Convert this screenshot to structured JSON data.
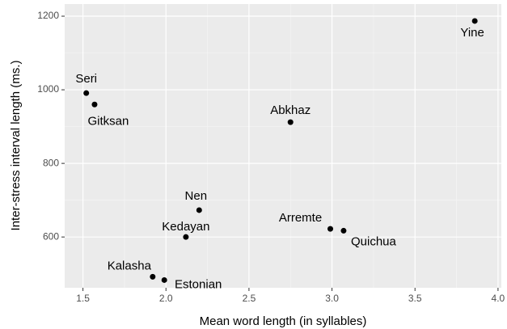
{
  "chart_data": {
    "type": "scatter",
    "x_label": "Mean word length (in syllables)",
    "y_label": "Inter-stress interval length (ms.)",
    "labels": [
      "Seri",
      "Gitksan",
      "Abkhaz",
      "Yine",
      "Nen",
      "Kedayan",
      "Arremte",
      "Quichua",
      "Kalasha",
      "Estonian"
    ],
    "x": [
      1.52,
      1.57,
      2.75,
      3.86,
      2.2,
      2.12,
      2.99,
      3.07,
      1.92,
      1.99
    ],
    "values": [
      991,
      960,
      912,
      1187,
      673,
      600,
      622,
      617,
      492,
      483
    ],
    "color": "#000000",
    "xlim": [
      1.39,
      4.02
    ],
    "xticks": [
      1.5,
      2.0,
      2.5,
      3.0,
      3.5,
      4.0
    ],
    "ylim": [
      462,
      1233
    ],
    "yticks": [
      600,
      800,
      1000,
      1200
    ],
    "grid": true
  }
}
